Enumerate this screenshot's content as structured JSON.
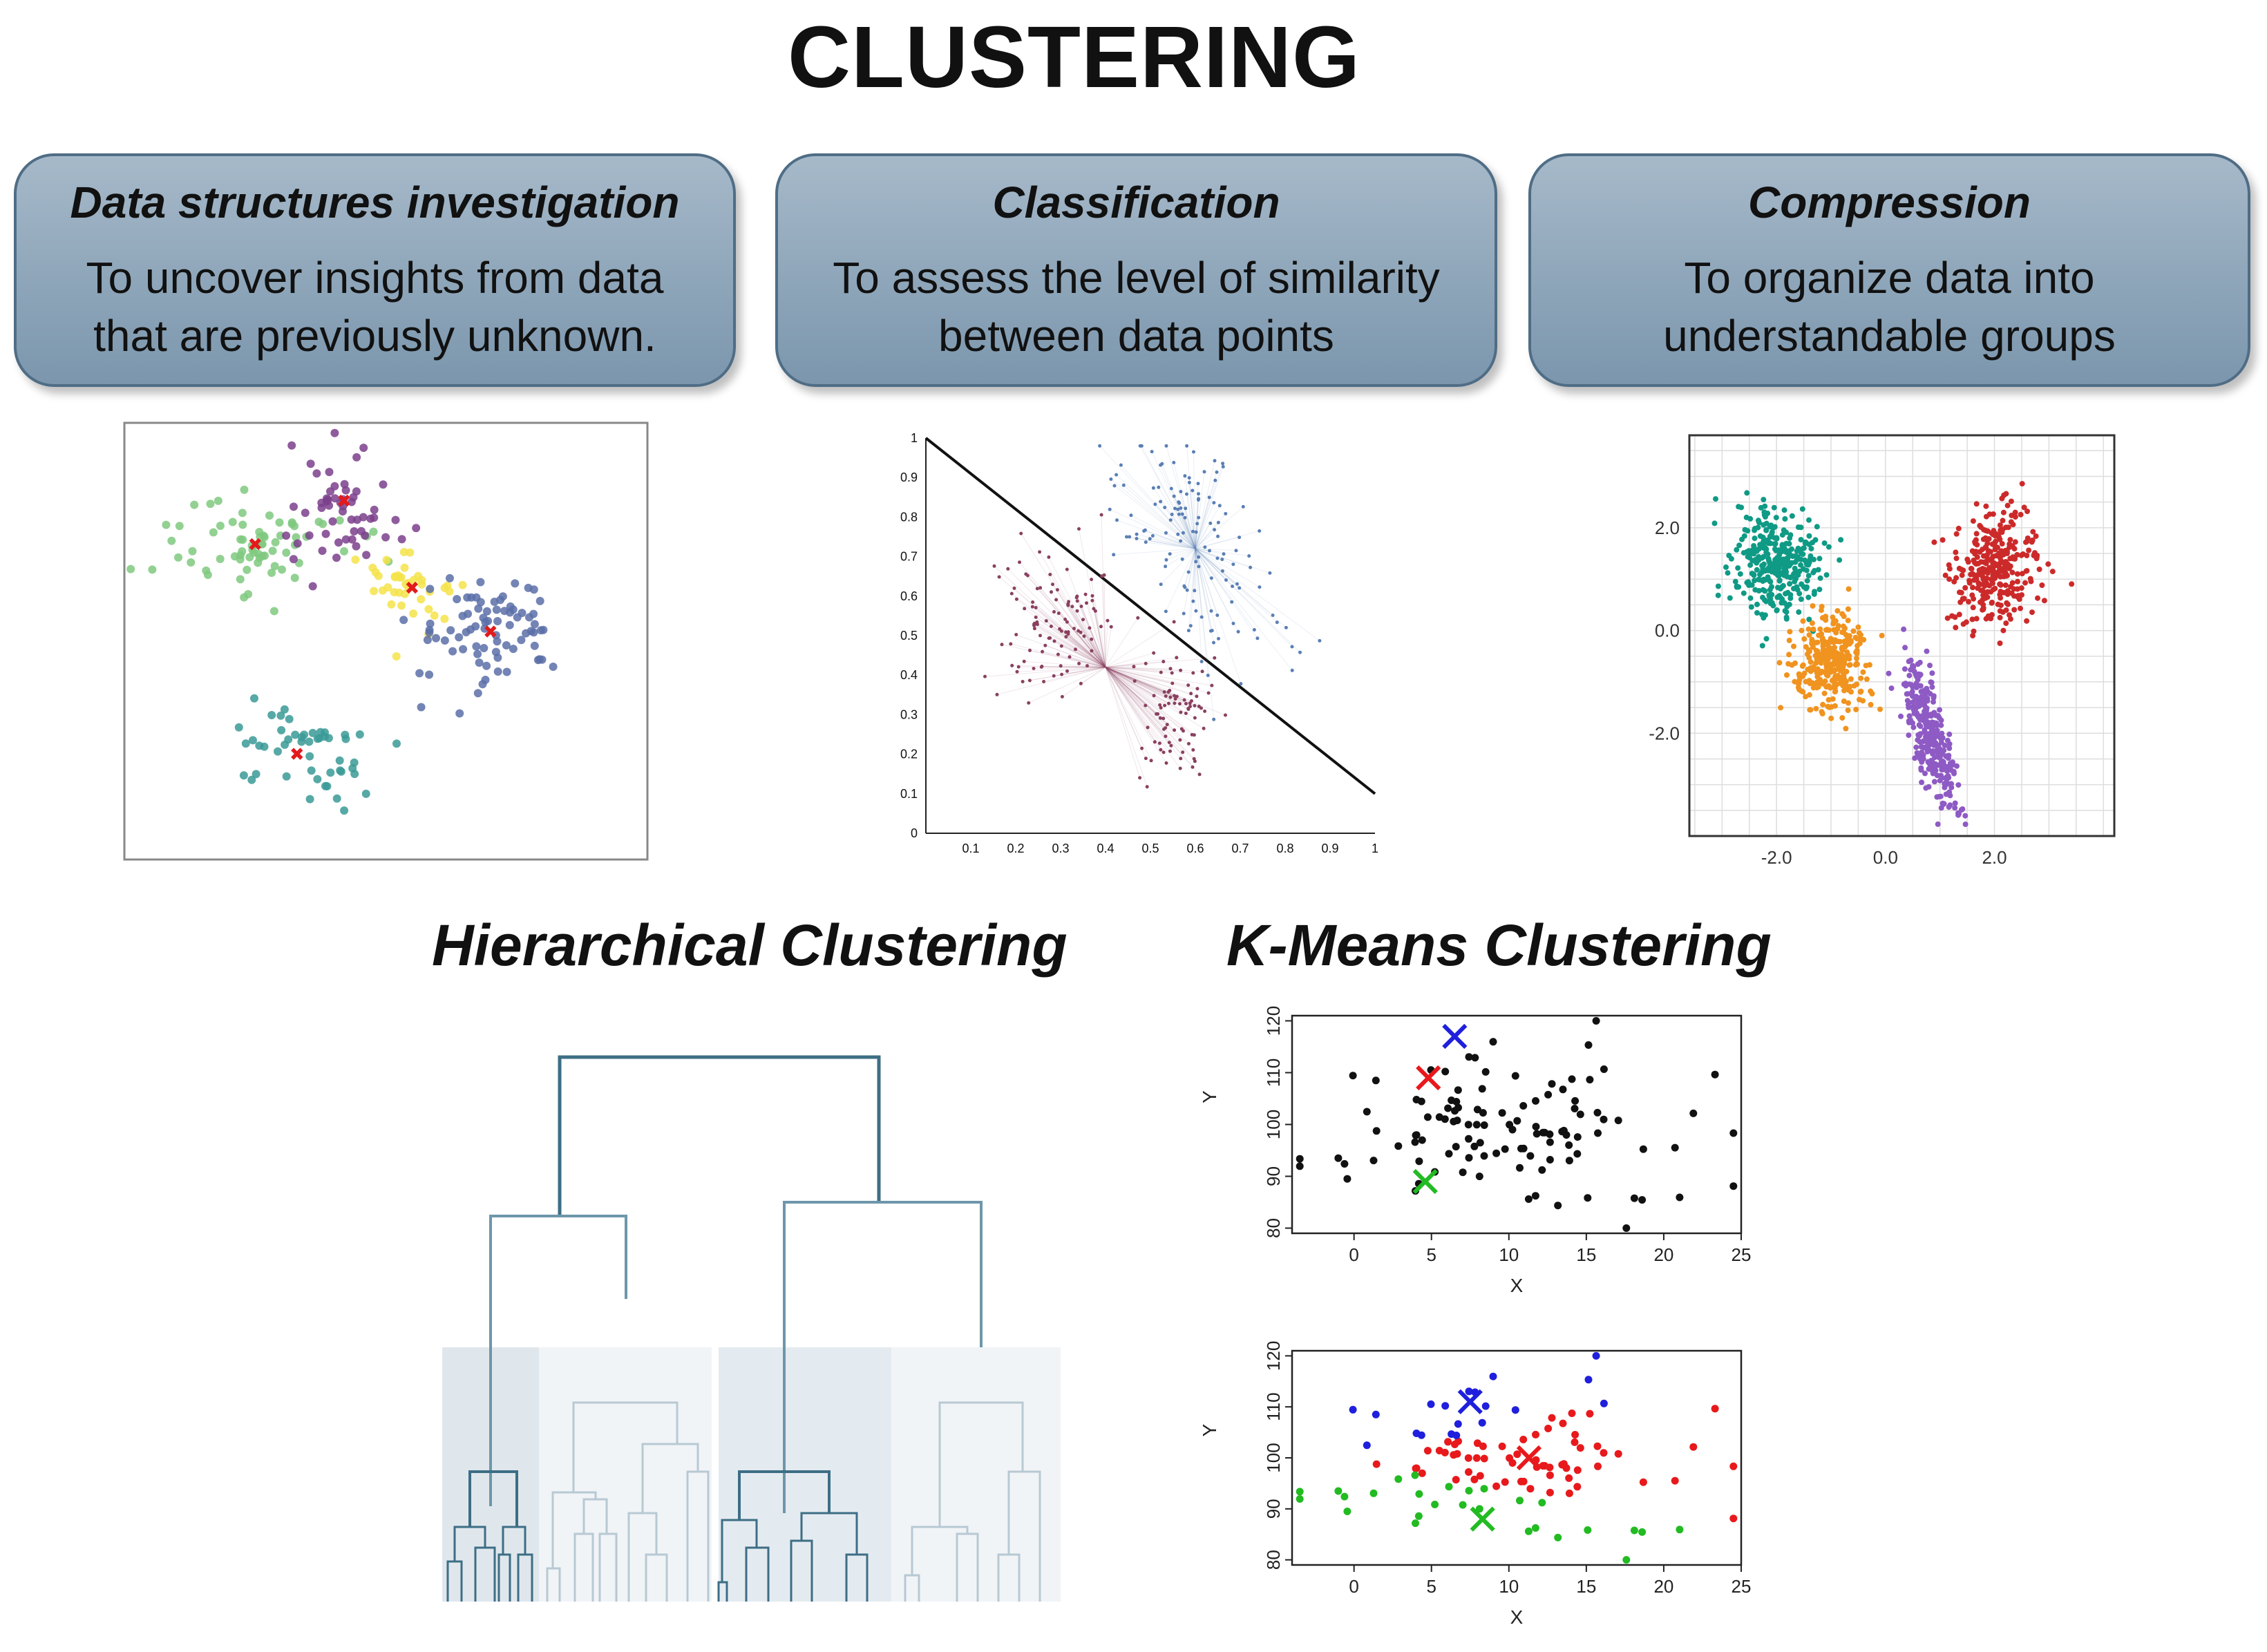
{
  "title": "CLUSTERING",
  "cards": [
    {
      "title": "Data structures investigation",
      "line1": "To uncover insights from data",
      "line2": "that are previously unknown."
    },
    {
      "title": "Classification",
      "line1": "To assess the level of similarity",
      "line2": "between data points"
    },
    {
      "title": "Compression",
      "line1": "To organize data into",
      "line2": "understandable groups"
    }
  ],
  "sections": {
    "hierarchical": "Hierarchical Clustering",
    "kmeans": "K-Means Clustering"
  },
  "classification_ticks": [
    "0.1",
    "0.2",
    "0.3",
    "0.4",
    "0.5",
    "0.6",
    "0.7",
    "0.8",
    "0.9",
    "1"
  ],
  "compression_ticks": [
    "-2.0",
    "0.0",
    "2.0"
  ],
  "kmeans_axes": {
    "x_ticks": [
      "0",
      "5",
      "10",
      "15",
      "20",
      "25"
    ],
    "y_ticks": [
      "80",
      "90",
      "100",
      "110",
      "120"
    ],
    "xlabel": "X",
    "ylabel": "Y"
  },
  "colors": {
    "card_fill": "#8ea6ba",
    "dendro_dark": "#3d6e85",
    "dendro_light": "#b7c9d3",
    "km_red": "#e8191c",
    "km_blue": "#1f1fdd",
    "km_green": "#22bb22"
  },
  "chart_data": [
    {
      "type": "scatter",
      "title": "",
      "description_series": [
        {
          "name": "green cluster",
          "color": "#7fc97f",
          "center": [
            0.25,
            0.72
          ]
        },
        {
          "name": "purple cluster",
          "color": "#7b3f8c",
          "center": [
            0.42,
            0.82
          ]
        },
        {
          "name": "yellow cluster",
          "color": "#f5e34a",
          "center": [
            0.55,
            0.62
          ]
        },
        {
          "name": "blue cluster",
          "color": "#5b6fa8",
          "center": [
            0.7,
            0.52
          ]
        },
        {
          "name": "teal cluster",
          "color": "#3a9a96",
          "center": [
            0.33,
            0.24
          ]
        }
      ]
    },
    {
      "type": "scatter",
      "title": "",
      "xlim": [
        0,
        1
      ],
      "ylim": [
        0,
        1
      ],
      "x_ticks": [
        0.1,
        0.2,
        0.3,
        0.4,
        0.5,
        0.6,
        0.7,
        0.8,
        0.9,
        1
      ],
      "y_ticks": [
        0.1,
        0.2,
        0.3,
        0.4,
        0.5,
        0.6,
        0.7,
        0.8,
        0.9,
        1
      ],
      "decision_line": [
        [
          0,
          1
        ],
        [
          1,
          0.1
        ]
      ]
    },
    {
      "type": "scatter",
      "title": "",
      "x_ticks": [
        -2.0,
        0.0,
        2.0
      ],
      "y_ticks": [
        -2.0,
        0.0,
        2.0
      ],
      "series_centers": [
        {
          "name": "teal",
          "color": "#0f9a85",
          "center": [
            -2.0,
            1.3
          ]
        },
        {
          "name": "orange",
          "color": "#f0931f",
          "center": [
            -1.0,
            -0.6
          ]
        },
        {
          "name": "purple",
          "color": "#8e5ac4",
          "center": [
            0.8,
            -2.0
          ]
        },
        {
          "name": "red",
          "color": "#cc2a2a",
          "center": [
            2.0,
            1.2
          ]
        }
      ]
    },
    {
      "type": "scatter",
      "xlabel": "X",
      "ylabel": "Y",
      "xlim": [
        -4,
        25
      ],
      "ylim": [
        79,
        121
      ],
      "centroids": [
        {
          "color": "#1f1fdd",
          "x": 6.5,
          "y": 117
        },
        {
          "color": "#e8191c",
          "x": 4.8,
          "y": 109
        },
        {
          "color": "#22bb22",
          "x": 4.6,
          "y": 89
        }
      ]
    },
    {
      "type": "scatter",
      "xlabel": "X",
      "ylabel": "Y",
      "xlim": [
        -4,
        25
      ],
      "ylim": [
        79,
        121
      ],
      "centroids": [
        {
          "color": "#1f1fdd",
          "x": 7.5,
          "y": 111
        },
        {
          "color": "#e8191c",
          "x": 11.3,
          "y": 100
        },
        {
          "color": "#22bb22",
          "x": 8.3,
          "y": 88
        }
      ]
    }
  ]
}
